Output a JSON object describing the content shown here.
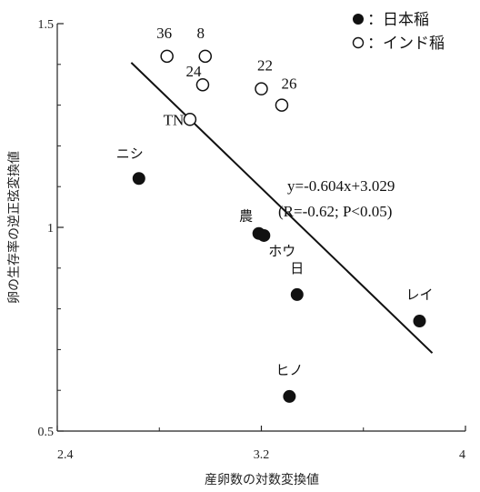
{
  "chart_data": {
    "type": "scatter",
    "xlabel": "産卵数の対数変換値",
    "ylabel": "卵の生存率の逆正弦変換値",
    "xlim": [
      2.4,
      4.0
    ],
    "ylim": [
      0.5,
      1.5
    ],
    "x_ticks": [
      {
        "value": 2.4,
        "label": "2.4"
      },
      {
        "value": 3.2,
        "label": "3.2"
      },
      {
        "value": 4.0,
        "label": "4"
      }
    ],
    "y_ticks": [
      {
        "value": 0.5,
        "label": "0.5"
      },
      {
        "value": 1.0,
        "label": "1"
      },
      {
        "value": 1.5,
        "label": "1.5"
      }
    ],
    "legend": [
      {
        "marker": "filled-circle",
        "label": "：日本稲"
      },
      {
        "marker": "open-circle",
        "label": "：インド稲"
      }
    ],
    "series": [
      {
        "marker": "filled-circle",
        "points": [
          {
            "label": "ニシ",
            "x": 2.72,
            "y": 1.12
          },
          {
            "label": "農",
            "x": 3.19,
            "y": 0.985
          },
          {
            "label": "ホウ",
            "x": 3.21,
            "y": 0.98
          },
          {
            "label": "日",
            "x": 3.34,
            "y": 0.835
          },
          {
            "label": "レイ",
            "x": 3.82,
            "y": 0.77
          },
          {
            "label": "ヒノ",
            "x": 3.31,
            "y": 0.585
          }
        ]
      },
      {
        "marker": "open-circle",
        "points": [
          {
            "label": "36",
            "x": 2.83,
            "y": 1.42
          },
          {
            "label": "8",
            "x": 2.98,
            "y": 1.42
          },
          {
            "label": "24",
            "x": 2.97,
            "y": 1.35
          },
          {
            "label": "22",
            "x": 3.2,
            "y": 1.34
          },
          {
            "label": "26",
            "x": 3.28,
            "y": 1.3
          },
          {
            "label": "TN",
            "x": 2.92,
            "y": 1.265
          }
        ]
      }
    ],
    "regression": {
      "slope": -0.604,
      "intercept": 3.029,
      "x_range": [
        2.69,
        3.87
      ],
      "equation": "y=-0.604x+3.029",
      "stats": "(R=-0.62; P<0.05)"
    }
  }
}
